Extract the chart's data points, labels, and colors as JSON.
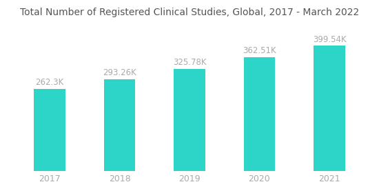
{
  "title": "Total Number of Registered Clinical Studies, Global, 2017 - March 2022",
  "categories": [
    "2017",
    "2018",
    "2019",
    "2020",
    "2021"
  ],
  "values": [
    262300,
    293260,
    325780,
    362510,
    399540
  ],
  "labels": [
    "262.3K",
    "293.26K",
    "325.78K",
    "362.51K",
    "399.54K"
  ],
  "bar_color": "#2DD4C8",
  "background_color": "#ffffff",
  "title_fontsize": 10,
  "label_fontsize": 8.5,
  "tick_fontsize": 9,
  "tick_color": "#aaaaaa",
  "label_color": "#aaaaaa",
  "title_color": "#555555",
  "bar_width": 0.45,
  "ylim": [
    0,
    460000
  ]
}
